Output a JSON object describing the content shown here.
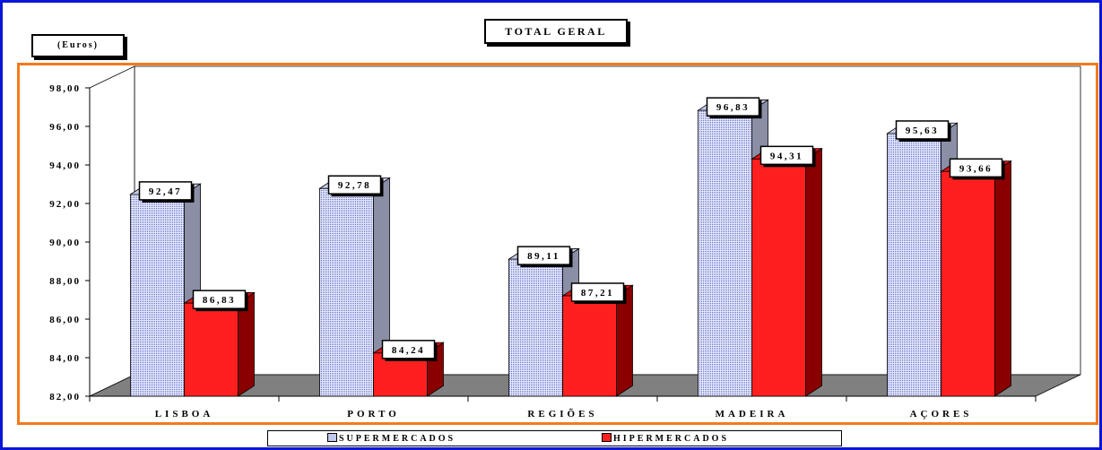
{
  "chart_data": {
    "type": "bar",
    "title": "TOTAL GERAL",
    "unit_label": "(Euros)",
    "categories": [
      "LISBOA",
      "PORTO",
      "REGIÕES",
      "MADEIRA",
      "AÇORES"
    ],
    "series": [
      {
        "name": "SUPERMERCADOS",
        "values": [
          92.47,
          92.78,
          89.11,
          96.83,
          95.63
        ],
        "labels": [
          "92,47",
          "92,78",
          "89,11",
          "96,83",
          "95,63"
        ],
        "color": "#dfe3f8"
      },
      {
        "name": "HIPERMERCADOS",
        "values": [
          86.83,
          84.24,
          87.21,
          94.31,
          93.66
        ],
        "labels": [
          "86,83",
          "84,24",
          "87,21",
          "94,31",
          "93,66"
        ],
        "color": "#ff1f1f"
      }
    ],
    "ylim": [
      82,
      98
    ],
    "yticks": [
      "82,00",
      "84,00",
      "86,00",
      "88,00",
      "90,00",
      "92,00",
      "94,00",
      "96,00",
      "98,00"
    ],
    "grid": false,
    "legend_position": "bottom",
    "colors": {
      "frame": "#0b16d6",
      "plot_border": "#f47a1c",
      "floor": "#808080"
    }
  }
}
